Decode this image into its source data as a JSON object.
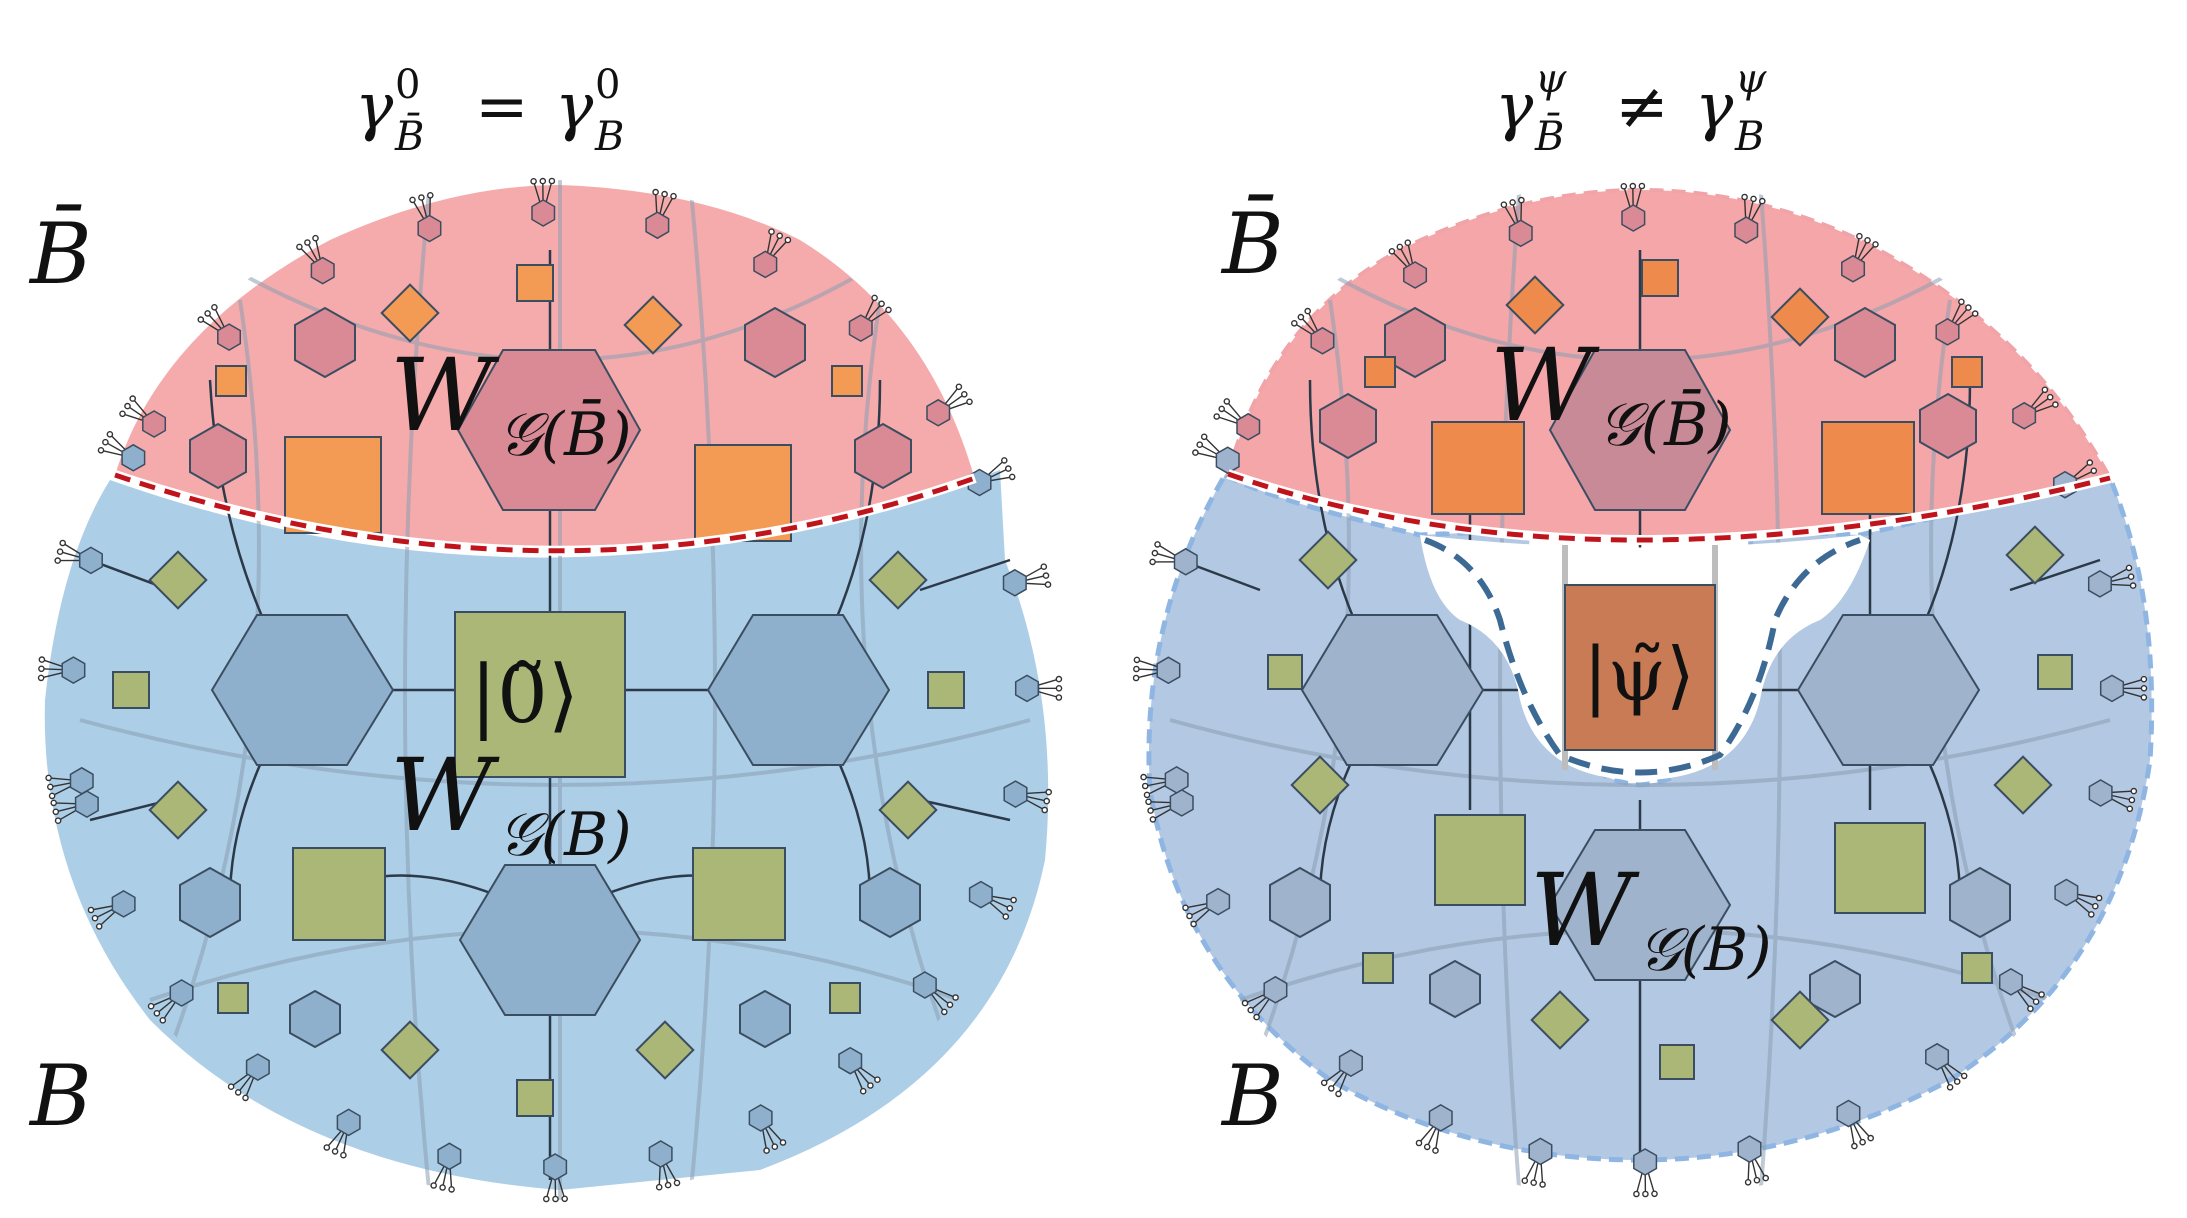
{
  "panels": [
    {
      "id": "left",
      "title": {
        "main": "γ",
        "sub1": "B̄",
        "sup1": "0",
        "rel": "=",
        "main2": "γ",
        "sub2": "B",
        "sup2": "0"
      },
      "region_top_label": "B̄",
      "region_bottom_label": "B",
      "op_top": {
        "main": "W",
        "sub": "𝒢(B̄)"
      },
      "op_bottom": {
        "main": "W",
        "sub": "𝒢(B)"
      },
      "bulk_state": "|0̃⟩"
    },
    {
      "id": "right",
      "title": {
        "main": "γ",
        "sub1": "B̄",
        "sup1": "ψ",
        "rel": "≠",
        "main2": "γ",
        "sub2": "B",
        "sup2": "ψ"
      },
      "region_top_label": "B̄",
      "region_bottom_label": "B",
      "op_top": {
        "main": "W",
        "sub": "𝒢(B̄)"
      },
      "op_bottom": {
        "main": "W",
        "sub": "𝒢(B)"
      },
      "bulk_state": "|ψ̃⟩"
    }
  ],
  "colors": {
    "red_region": "#f4a6a8",
    "blue_region": "#a9cbe6",
    "blue_region_right": "#b3c8e3",
    "hex_blue": "#8fb0cc",
    "hex_red": "#d98a94",
    "square_green": "#aab777",
    "square_orange": "#f39a54",
    "state_brown": "#c97b55",
    "cut_red": "#c0141c",
    "cut_blue": "#3c6a94"
  }
}
